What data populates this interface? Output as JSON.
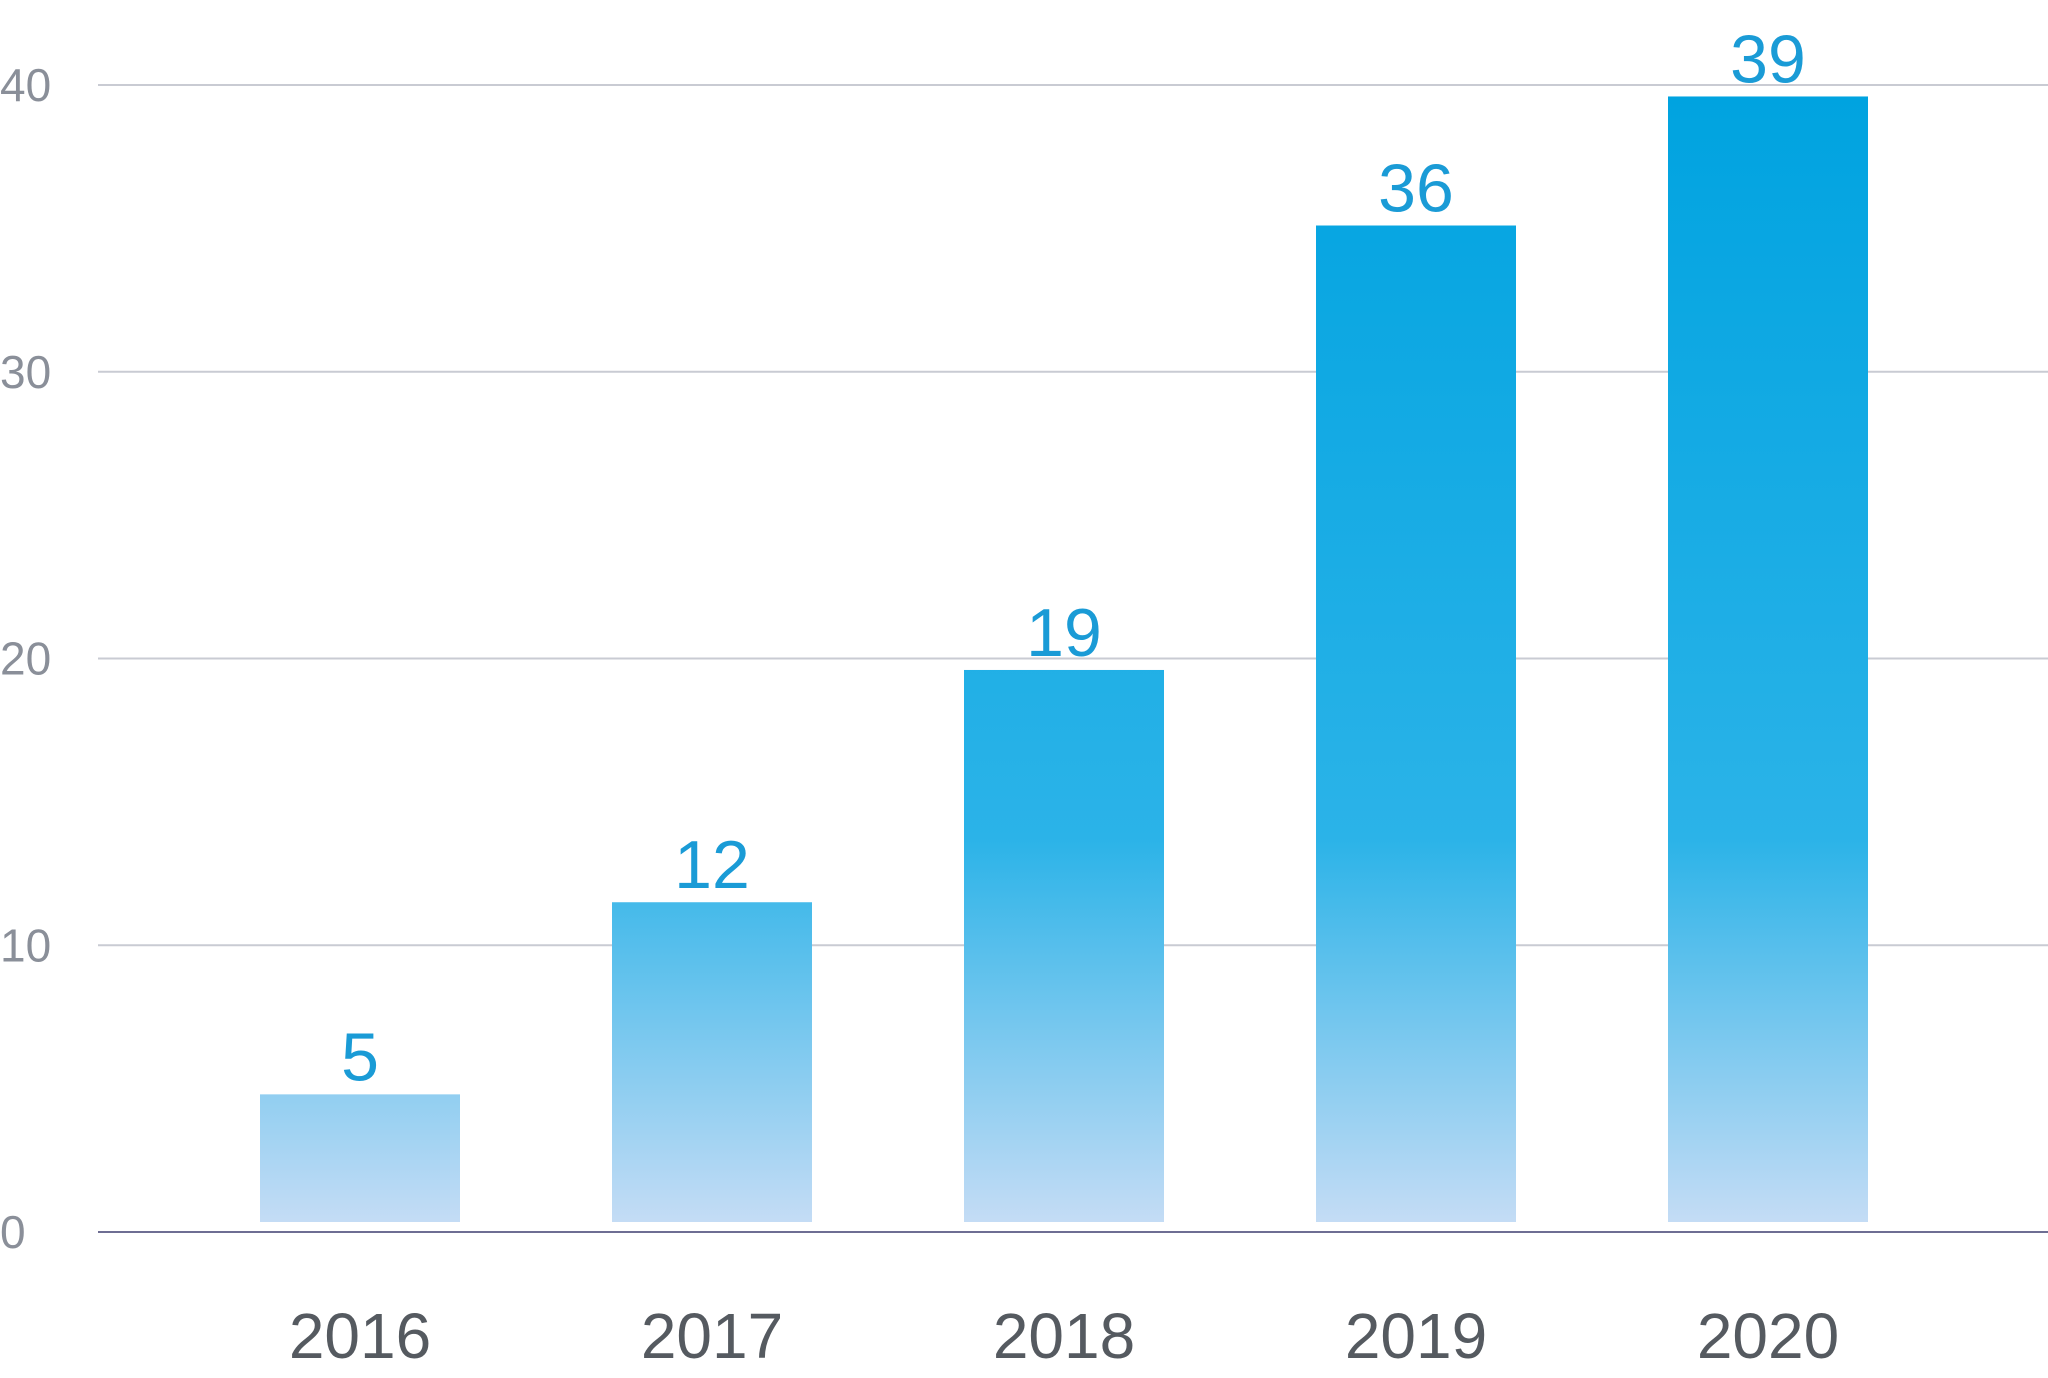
{
  "chart_data": {
    "type": "bar",
    "categories": [
      "2016",
      "2017",
      "2018",
      "2019",
      "2020"
    ],
    "values": [
      5,
      12,
      19,
      36,
      39
    ],
    "bar_heights_estimated": [
      4.8,
      11.5,
      19.6,
      35.1,
      39.6
    ],
    "data_labels": [
      "5",
      "12",
      "19",
      "36",
      "39"
    ],
    "title": "",
    "xlabel": "",
    "ylabel": "",
    "ylim": [
      0,
      40
    ],
    "yticks": [
      0,
      10,
      20,
      30,
      40
    ],
    "ytick_labels": [
      "0",
      "10",
      "20",
      "30",
      "40"
    ],
    "grid": true,
    "legend": "none",
    "colors": {
      "bar_top": "#00a3e0",
      "bar_mid": "#2bb3e8",
      "bar_bottom": "#c4dcf5",
      "data_label": "#1a9bd6",
      "gridline": "#c9cbd3",
      "baseline": "#6e6e93",
      "ytick_text": "#8a8f99",
      "xtick_text": "#555a60"
    }
  }
}
